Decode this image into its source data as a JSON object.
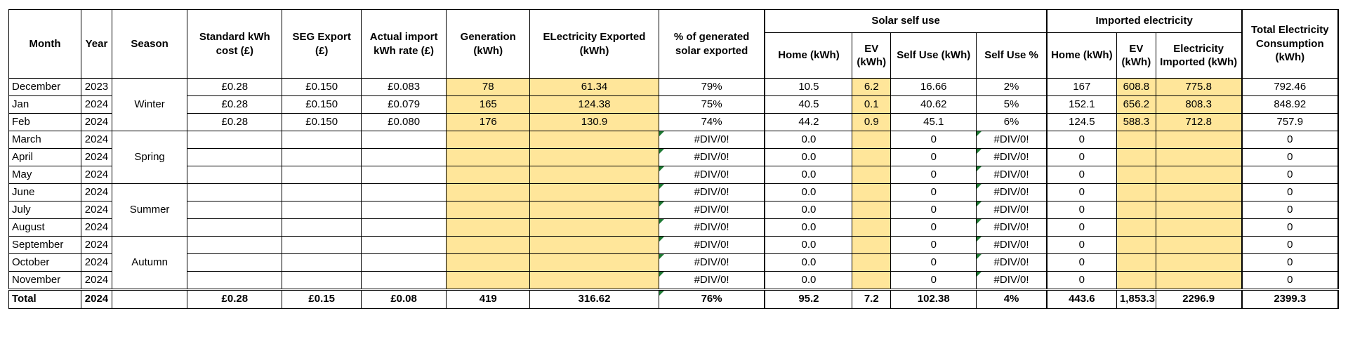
{
  "headers": {
    "month": "Month",
    "year": "Year",
    "season": "Season",
    "std_cost": "Standard kWh cost (£)",
    "seg_export": "SEG Export (£)",
    "import_rate": "Actual import kWh rate (£)",
    "generation": "Generation (kWh)",
    "exported": "ELectricity Exported (kWh)",
    "pct_exported": "% of generated solar exported",
    "solar_group": "Solar self use",
    "solar_home": "Home (kWh)",
    "solar_ev": "EV (kWh)",
    "self_use": "Self Use (kWh)",
    "self_use_pct": "Self Use %",
    "imported_group": "Imported electricity",
    "imp_home": "Home (kWh)",
    "imp_ev": "EV (kWh)",
    "imp_total": "Electricity Imported (kWh)",
    "total_consumption": "Total Electricity Consumption (kWh)"
  },
  "seasons": [
    "Winter",
    "Spring",
    "Summer",
    "Autumn"
  ],
  "rows": [
    {
      "month": "December",
      "year": "2023",
      "std": "£0.28",
      "seg": "£0.150",
      "imp_rate": "£0.083",
      "gen": "78",
      "exp": "61.34",
      "pct": "79%",
      "s_home": "10.5",
      "s_ev": "6.2",
      "self": "16.66",
      "self_pct": "2%",
      "i_home": "167",
      "i_ev": "608.8",
      "i_total": "775.8",
      "total": "792.46"
    },
    {
      "month": "Jan",
      "year": "2024",
      "std": "£0.28",
      "seg": "£0.150",
      "imp_rate": "£0.079",
      "gen": "165",
      "exp": "124.38",
      "pct": "75%",
      "s_home": "40.5",
      "s_ev": "0.1",
      "self": "40.62",
      "self_pct": "5%",
      "i_home": "152.1",
      "i_ev": "656.2",
      "i_total": "808.3",
      "total": "848.92"
    },
    {
      "month": "Feb",
      "year": "2024",
      "std": "£0.28",
      "seg": "£0.150",
      "imp_rate": "£0.080",
      "gen": "176",
      "exp": "130.9",
      "pct": "74%",
      "s_home": "44.2",
      "s_ev": "0.9",
      "self": "45.1",
      "self_pct": "6%",
      "i_home": "124.5",
      "i_ev": "588.3",
      "i_total": "712.8",
      "total": "757.9"
    },
    {
      "month": "March",
      "year": "2024",
      "std": "",
      "seg": "",
      "imp_rate": "",
      "gen": "",
      "exp": "",
      "pct": "#DIV/0!",
      "s_home": "0.0",
      "s_ev": "",
      "self": "0",
      "self_pct": "#DIV/0!",
      "i_home": "0",
      "i_ev": "",
      "i_total": "",
      "total": "0"
    },
    {
      "month": "April",
      "year": "2024",
      "std": "",
      "seg": "",
      "imp_rate": "",
      "gen": "",
      "exp": "",
      "pct": "#DIV/0!",
      "s_home": "0.0",
      "s_ev": "",
      "self": "0",
      "self_pct": "#DIV/0!",
      "i_home": "0",
      "i_ev": "",
      "i_total": "",
      "total": "0"
    },
    {
      "month": "May",
      "year": "2024",
      "std": "",
      "seg": "",
      "imp_rate": "",
      "gen": "",
      "exp": "",
      "pct": "#DIV/0!",
      "s_home": "0.0",
      "s_ev": "",
      "self": "0",
      "self_pct": "#DIV/0!",
      "i_home": "0",
      "i_ev": "",
      "i_total": "",
      "total": "0"
    },
    {
      "month": "June",
      "year": "2024",
      "std": "",
      "seg": "",
      "imp_rate": "",
      "gen": "",
      "exp": "",
      "pct": "#DIV/0!",
      "s_home": "0.0",
      "s_ev": "",
      "self": "0",
      "self_pct": "#DIV/0!",
      "i_home": "0",
      "i_ev": "",
      "i_total": "",
      "total": "0"
    },
    {
      "month": "July",
      "year": "2024",
      "std": "",
      "seg": "",
      "imp_rate": "",
      "gen": "",
      "exp": "",
      "pct": "#DIV/0!",
      "s_home": "0.0",
      "s_ev": "",
      "self": "0",
      "self_pct": "#DIV/0!",
      "i_home": "0",
      "i_ev": "",
      "i_total": "",
      "total": "0"
    },
    {
      "month": "August",
      "year": "2024",
      "std": "",
      "seg": "",
      "imp_rate": "",
      "gen": "",
      "exp": "",
      "pct": "#DIV/0!",
      "s_home": "0.0",
      "s_ev": "",
      "self": "0",
      "self_pct": "#DIV/0!",
      "i_home": "0",
      "i_ev": "",
      "i_total": "",
      "total": "0"
    },
    {
      "month": "September",
      "year": "2024",
      "std": "",
      "seg": "",
      "imp_rate": "",
      "gen": "",
      "exp": "",
      "pct": "#DIV/0!",
      "s_home": "0.0",
      "s_ev": "",
      "self": "0",
      "self_pct": "#DIV/0!",
      "i_home": "0",
      "i_ev": "",
      "i_total": "",
      "total": "0"
    },
    {
      "month": "October",
      "year": "2024",
      "std": "",
      "seg": "",
      "imp_rate": "",
      "gen": "",
      "exp": "",
      "pct": "#DIV/0!",
      "s_home": "0.0",
      "s_ev": "",
      "self": "0",
      "self_pct": "#DIV/0!",
      "i_home": "0",
      "i_ev": "",
      "i_total": "",
      "total": "0"
    },
    {
      "month": "November",
      "year": "2024",
      "std": "",
      "seg": "",
      "imp_rate": "",
      "gen": "",
      "exp": "",
      "pct": "#DIV/0!",
      "s_home": "0.0",
      "s_ev": "",
      "self": "0",
      "self_pct": "#DIV/0!",
      "i_home": "0",
      "i_ev": "",
      "i_total": "",
      "total": "0"
    }
  ],
  "total_row": {
    "month": "Total",
    "year": "2024",
    "std": "£0.28",
    "seg": "£0.15",
    "imp_rate": "£0.08",
    "gen": "419",
    "exp": "316.62",
    "pct": "76%",
    "s_home": "95.2",
    "s_ev": "7.2",
    "self": "102.38",
    "self_pct": "4%",
    "i_home": "443.6",
    "i_ev": "1,853.3",
    "i_total": "2296.9",
    "total": "2399.3"
  },
  "colors": {
    "highlight": "#ffe69a",
    "error_marker": "#1e7b34"
  }
}
